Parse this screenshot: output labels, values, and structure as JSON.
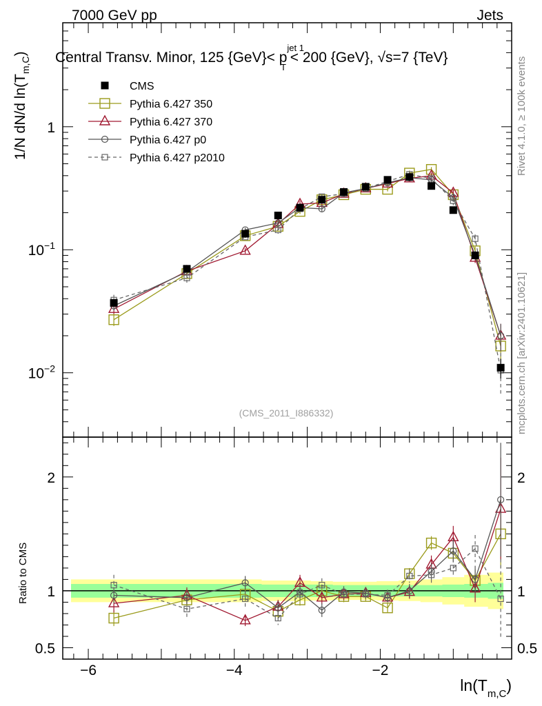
{
  "header": {
    "left": "7000 GeV pp",
    "right": "Jets",
    "title": "Central Transv. Minor, 125 {GeV}< p_T^{jet 1} < 200 {GeV}, √s=7 {TeV}",
    "title_parts": {
      "pre": "Central Transv. Minor, 125 {GeV}< p",
      "sup": "jet 1",
      "sub": "T",
      "post": " < 200 {GeV}, √s=7 {TeV}"
    }
  },
  "side_labels": {
    "rivet": "Rivet 4.1.0, ≥ 100k events",
    "mcplots": "mcplots.cern.ch [arXiv:2401.10621]"
  },
  "watermark": "(CMS_2011_I886332)",
  "chart_data": {
    "type": "scatter",
    "x": [
      -5.65,
      -4.65,
      -3.85,
      -3.4,
      -3.1,
      -2.8,
      -2.5,
      -2.2,
      -1.9,
      -1.6,
      -1.3,
      -1.0,
      -0.7,
      -0.35
    ],
    "xlim": [
      -6.35,
      -0.2
    ],
    "xticks": [
      -6,
      -4,
      -2
    ],
    "xtick_labels": [
      "−6",
      "−4",
      "−2"
    ],
    "xlabel": {
      "main": "ln(T",
      "sub": "m,C",
      "close": ")"
    },
    "main": {
      "ylabel": {
        "main": "1/N    dN/d ln(T",
        "sub": "m,C",
        "close": ")"
      },
      "yscale": "log",
      "ylim": [
        0.003,
        7
      ],
      "yticks": [
        {
          "value": 1,
          "base": "1",
          "exp": ""
        },
        {
          "value": 0.1,
          "base": "10",
          "exp": "−1"
        },
        {
          "value": 0.01,
          "base": "10",
          "exp": "−2"
        }
      ]
    },
    "ratio": {
      "ylabel": "Ratio to CMS",
      "ylim": [
        0.4,
        2.35
      ],
      "yticks": [
        0.5,
        1,
        2
      ],
      "ytick_labels": [
        "0.5",
        "1",
        "2"
      ],
      "band_inner": [
        0.06,
        0.06,
        0.06,
        0.055,
        0.055,
        0.055,
        0.05,
        0.05,
        0.05,
        0.05,
        0.05,
        0.055,
        0.06,
        0.07
      ],
      "band_outer": [
        0.1,
        0.1,
        0.1,
        0.09,
        0.09,
        0.085,
        0.08,
        0.08,
        0.085,
        0.09,
        0.1,
        0.12,
        0.14,
        0.16
      ]
    },
    "series": [
      {
        "name": "CMS",
        "color": "#000000",
        "marker": "square-filled",
        "dashed": false,
        "line": false,
        "values": [
          0.037,
          0.07,
          0.135,
          0.19,
          0.22,
          0.255,
          0.295,
          0.325,
          0.37,
          0.39,
          0.33,
          0.21,
          0.09,
          0.011
        ],
        "errors": [
          0.003,
          0.004,
          0.006,
          0.01,
          0.01,
          0.01,
          0.012,
          0.013,
          0.015,
          0.016,
          0.015,
          0.012,
          0.006,
          0.002
        ],
        "ratio": [
          1,
          1,
          1,
          1,
          1,
          1,
          1,
          1,
          1,
          1,
          1,
          1,
          1,
          1
        ],
        "ratio_err": [
          0,
          0,
          0,
          0,
          0,
          0,
          0,
          0,
          0,
          0,
          0,
          0,
          0,
          0
        ]
      },
      {
        "name": "Pythia 6.427 350",
        "color": "#9a9a1a",
        "marker": "square-open",
        "dashed": false,
        "line": true,
        "values": [
          0.027,
          0.064,
          0.13,
          0.155,
          0.205,
          0.255,
          0.28,
          0.31,
          0.31,
          0.42,
          0.45,
          0.28,
          0.098,
          0.0165
        ],
        "errors": [
          0.003,
          0.004,
          0.005,
          0.01,
          0.01,
          0.01,
          0.01,
          0.012,
          0.012,
          0.02,
          0.02,
          0.02,
          0.008,
          0.004
        ],
        "ratio": [
          0.76,
          0.92,
          0.97,
          0.82,
          0.92,
          1.0,
          0.95,
          0.95,
          0.85,
          1.15,
          1.42,
          1.33,
          1.09,
          1.5
        ],
        "ratio_err": [
          0.07,
          0.06,
          0.06,
          0.06,
          0.05,
          0.05,
          0.05,
          0.04,
          0.04,
          0.05,
          0.06,
          0.07,
          0.1,
          0.3
        ]
      },
      {
        "name": "Pythia 6.427 370",
        "color": "#a01830",
        "marker": "triangle-open",
        "dashed": false,
        "line": true,
        "values": [
          0.033,
          0.067,
          0.098,
          0.162,
          0.235,
          0.24,
          0.285,
          0.315,
          0.345,
          0.38,
          0.4,
          0.29,
          0.086,
          0.02
        ],
        "errors": [
          0.003,
          0.004,
          0.005,
          0.01,
          0.015,
          0.015,
          0.012,
          0.012,
          0.012,
          0.02,
          0.025,
          0.02,
          0.008,
          0.005
        ],
        "ratio": [
          0.89,
          0.96,
          0.74,
          0.86,
          1.07,
          0.94,
          0.97,
          0.98,
          0.94,
          0.99,
          1.23,
          1.47,
          1.02,
          1.72
        ],
        "ratio_err": [
          0.08,
          0.07,
          0.05,
          0.06,
          0.07,
          0.06,
          0.05,
          0.05,
          0.04,
          0.06,
          0.08,
          0.1,
          0.12,
          0.45
        ]
      },
      {
        "name": "Pythia 6.427 p0",
        "color": "#555555",
        "marker": "circle-open",
        "dashed": false,
        "line": true,
        "values": [
          0.035,
          0.066,
          0.145,
          0.165,
          0.22,
          0.215,
          0.29,
          0.315,
          0.35,
          0.385,
          0.37,
          0.265,
          0.09,
          0.02
        ],
        "errors": [
          0.003,
          0.004,
          0.006,
          0.01,
          0.012,
          0.012,
          0.012,
          0.012,
          0.014,
          0.02,
          0.02,
          0.02,
          0.008,
          0.005
        ],
        "ratio": [
          0.96,
          0.94,
          1.07,
          0.85,
          0.99,
          0.83,
          0.99,
          0.98,
          0.94,
          1.0,
          1.17,
          1.35,
          1.1,
          1.8
        ],
        "ratio_err": [
          0.07,
          0.06,
          0.06,
          0.06,
          0.06,
          0.06,
          0.05,
          0.05,
          0.04,
          0.06,
          0.07,
          0.1,
          0.12,
          0.5
        ]
      },
      {
        "name": "Pythia 6.427 p2010",
        "color": "#666666",
        "marker": "square-small-open",
        "dashed": true,
        "line": true,
        "values": [
          0.039,
          0.059,
          0.127,
          0.145,
          0.215,
          0.27,
          0.285,
          0.315,
          0.36,
          0.41,
          0.38,
          0.25,
          0.123,
          0.0105
        ],
        "errors": [
          0.004,
          0.005,
          0.006,
          0.01,
          0.012,
          0.012,
          0.012,
          0.012,
          0.014,
          0.02,
          0.02,
          0.02,
          0.01,
          0.004
        ],
        "ratio": [
          1.05,
          0.84,
          0.93,
          0.76,
          0.97,
          1.05,
          0.97,
          0.97,
          0.96,
          1.13,
          1.14,
          1.2,
          1.37,
          0.93
        ],
        "ratio_err": [
          0.09,
          0.07,
          0.07,
          0.06,
          0.06,
          0.06,
          0.05,
          0.05,
          0.05,
          0.06,
          0.07,
          0.08,
          0.12,
          0.35
        ]
      }
    ]
  }
}
